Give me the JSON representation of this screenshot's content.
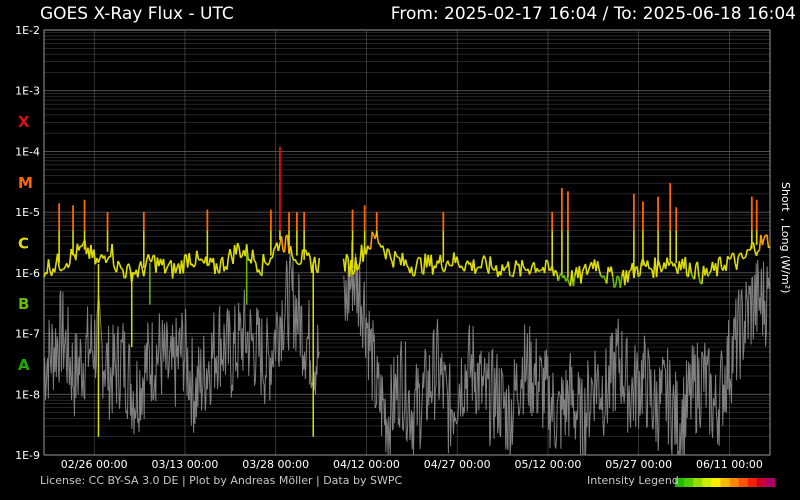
{
  "header": {
    "title": "GOES X-Ray Flux - UTC",
    "range": "From: 2025-02-17 16:04  /  To: 2025-06-18 16:04"
  },
  "footer": {
    "credits": "License: CC BY-SA 3.0 DE | Plot by Andreas Möller | Data by SWPC",
    "legend_label": "Intensity Legend",
    "legend_colors": [
      "#22bb00",
      "#55cc00",
      "#99dd00",
      "#ccee00",
      "#ffee00",
      "#ffbb00",
      "#ff8800",
      "#ff5500",
      "#ee2200",
      "#cc0033",
      "#aa0066"
    ]
  },
  "colors": {
    "background": "#000000",
    "grid": "#5a5a5a",
    "short_channel": "#808080",
    "class_X": "#dd1111",
    "class_M": "#ff6600",
    "class_C": "#dddd00",
    "class_B": "#66bb00",
    "class_A": "#22aa00"
  },
  "chart_data": {
    "type": "line",
    "title": "GOES X-Ray Flux - UTC",
    "ylabel_short": "Short",
    "ylabel_long": ", Long (W/m²)",
    "y_scale": "log",
    "ylim": [
      1e-09,
      0.01
    ],
    "y_ticks": [
      "1E-9",
      "1E-8",
      "1E-7",
      "1E-6",
      "1E-5",
      "1E-4",
      "1E-3",
      "1E-2"
    ],
    "flare_classes": [
      {
        "label": "X",
        "level": 0.0001
      },
      {
        "label": "M",
        "level": 1e-05
      },
      {
        "label": "C",
        "level": 1e-06
      },
      {
        "label": "B",
        "level": 1e-07
      },
      {
        "label": "A",
        "level": 1e-08
      }
    ],
    "xlim": [
      "2025-02-17 16:04",
      "2025-06-18 16:04"
    ],
    "x_ticks": [
      "02/26 00:00",
      "03/13 00:00",
      "03/28 00:00",
      "04/12 00:00",
      "04/27 00:00",
      "05/12 00:00",
      "05/27 00:00",
      "06/11 00:00"
    ],
    "x_tick_days": [
      8.3,
      23.3,
      38.3,
      53.3,
      68.3,
      83.3,
      98.3,
      113.3
    ],
    "grid": true,
    "data_gaps_days": [
      [
        45.5,
        49.5
      ]
    ],
    "series": [
      {
        "name": "Long",
        "x_days": [
          0,
          3,
          5,
          7,
          8,
          9,
          11,
          12,
          14,
          16,
          18,
          20,
          22,
          24,
          26,
          28,
          30,
          32,
          34,
          36,
          38,
          39,
          40,
          41,
          42,
          44,
          45,
          49.5,
          51,
          53,
          55,
          57,
          59,
          61,
          63,
          65,
          67,
          69,
          71,
          73,
          75,
          77,
          79,
          81,
          83,
          85,
          87,
          89,
          91,
          93,
          95,
          97,
          99,
          101,
          103,
          105,
          107,
          109,
          111,
          113,
          115,
          116,
          117,
          118,
          120
        ],
        "flux": [
          1.2e-06,
          1.5e-06,
          2e-06,
          2.5e-06,
          1.8e-06,
          1.4e-06,
          2.6e-06,
          1.3e-06,
          1e-06,
          1.1e-06,
          1.6e-06,
          1.2e-06,
          1.1e-06,
          1.9e-06,
          1.4e-06,
          1.2e-06,
          1.5e-06,
          2.5e-06,
          2e-06,
          1.3e-06,
          2.2e-06,
          3.5e-06,
          3e-06,
          2.5e-06,
          1.8e-06,
          1.5e-06,
          1.4e-06,
          1.5e-06,
          1.2e-06,
          2.5e-06,
          4e-06,
          2e-06,
          1.5e-06,
          1.3e-06,
          1.4e-06,
          1.4e-06,
          1.6e-06,
          1.5e-06,
          1.3e-06,
          1.3e-06,
          1.2e-06,
          1.2e-06,
          1.1e-06,
          1.4e-06,
          1.1e-06,
          1e-06,
          8e-07,
          9e-07,
          1.6e-06,
          9e-07,
          8e-07,
          1e-06,
          1.3e-06,
          1.2e-06,
          1.6e-06,
          1.4e-06,
          1.2e-06,
          9e-07,
          1.1e-06,
          1.6e-06,
          1.5e-06,
          1.8e-06,
          2.5e-06,
          3e-06,
          3.5e-06
        ]
      },
      {
        "name": "Short",
        "x_days": [
          0,
          3,
          5,
          7,
          9,
          11,
          13,
          15,
          17,
          19,
          21,
          23,
          25,
          27,
          29,
          31,
          33,
          35,
          37,
          39,
          41,
          43,
          45,
          49.5,
          51,
          53,
          55,
          57,
          59,
          61,
          63,
          65,
          67,
          69,
          71,
          73,
          75,
          77,
          79,
          81,
          83,
          85,
          87,
          89,
          91,
          93,
          95,
          97,
          99,
          101,
          103,
          105,
          107,
          109,
          111,
          113,
          115,
          117,
          120
        ],
        "flux": [
          3e-08,
          1e-07,
          2e-08,
          5e-08,
          8e-08,
          2e-08,
          4e-08,
          1e-08,
          3e-08,
          5e-08,
          2e-08,
          6e-08,
          1e-08,
          3e-08,
          8e-08,
          4e-08,
          1e-07,
          6e-08,
          3e-08,
          2e-07,
          4e-07,
          1e-07,
          4e-08,
          2e-07,
          1e-06,
          3e-07,
          1e-08,
          4e-09,
          2e-08,
          5e-09,
          1e-08,
          3e-08,
          5e-09,
          2e-08,
          3e-08,
          8e-09,
          1e-08,
          4e-09,
          3e-08,
          2e-08,
          1e-08,
          4e-09,
          1e-08,
          3e-09,
          2e-08,
          1e-08,
          4e-08,
          1e-08,
          2e-08,
          6e-09,
          1e-08,
          3e-09,
          1e-08,
          2e-08,
          5e-09,
          3e-08,
          1e-07,
          3e-07,
          4e-07
        ]
      }
    ],
    "flare_peaks": [
      {
        "x_day": 2.5,
        "flux": 1.4e-05
      },
      {
        "x_day": 4.8,
        "flux": 1.3e-05
      },
      {
        "x_day": 6.7,
        "flux": 1.6e-05
      },
      {
        "x_day": 10.5,
        "flux": 1e-05
      },
      {
        "x_day": 16.5,
        "flux": 1e-05
      },
      {
        "x_day": 27.0,
        "flux": 1.1e-05
      },
      {
        "x_day": 37.5,
        "flux": 1.1e-05
      },
      {
        "x_day": 39.0,
        "flux": 0.00012
      },
      {
        "x_day": 40.5,
        "flux": 1e-05
      },
      {
        "x_day": 41.8,
        "flux": 1e-05
      },
      {
        "x_day": 43.0,
        "flux": 1e-05
      },
      {
        "x_day": 51.0,
        "flux": 1.1e-05
      },
      {
        "x_day": 53.0,
        "flux": 1.3e-05
      },
      {
        "x_day": 55.0,
        "flux": 1e-05
      },
      {
        "x_day": 66.0,
        "flux": 1e-05
      },
      {
        "x_day": 84.0,
        "flux": 1e-05
      },
      {
        "x_day": 85.6,
        "flux": 2.5e-05
      },
      {
        "x_day": 86.6,
        "flux": 2.2e-05
      },
      {
        "x_day": 97.5,
        "flux": 2e-05
      },
      {
        "x_day": 99.0,
        "flux": 1.5e-05
      },
      {
        "x_day": 101.5,
        "flux": 1.8e-05
      },
      {
        "x_day": 103.5,
        "flux": 3e-05
      },
      {
        "x_day": 104.5,
        "flux": 1.2e-05
      },
      {
        "x_day": 117.0,
        "flux": 1.8e-05
      },
      {
        "x_day": 117.8,
        "flux": 1.6e-05
      }
    ],
    "dropouts": [
      {
        "x_day": 9.0,
        "flux": 2e-09
      },
      {
        "x_day": 14.5,
        "flux": 6e-08
      },
      {
        "x_day": 17.5,
        "flux": 3e-07
      },
      {
        "x_day": 33.5,
        "flux": 3e-07
      },
      {
        "x_day": 44.5,
        "flux": 2e-09
      }
    ]
  }
}
